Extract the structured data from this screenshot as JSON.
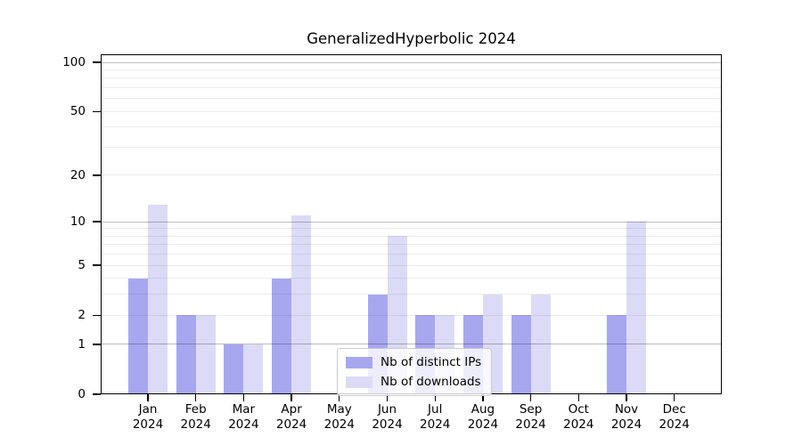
{
  "title": "GeneralizedHyperbolic 2024",
  "colors": {
    "distinct_ips": "#a7a7f0",
    "downloads": "#dbdbf8",
    "grid_major": "#00000042",
    "grid_minor": "#00000013",
    "axis": "#000000",
    "legend_border": "#cbcbcb"
  },
  "legend": {
    "items": [
      {
        "label": "Nb of distinct IPs",
        "color_key": "distinct_ips"
      },
      {
        "label": "Nb of downloads",
        "color_key": "downloads"
      }
    ]
  },
  "y_axis": {
    "scale": "log1p",
    "tick_values": [
      100,
      50,
      20,
      10,
      5,
      2,
      1,
      0
    ],
    "tick_labels": [
      "100",
      "50",
      "20",
      "10",
      "5",
      "2",
      "1",
      "0"
    ],
    "grid_major_values": [
      1,
      10,
      100
    ]
  },
  "x_axis": {
    "year_line": "2024",
    "month_labels": [
      "Jan",
      "Feb",
      "Mar",
      "Apr",
      "May",
      "Jun",
      "Jul",
      "Aug",
      "Sep",
      "Oct",
      "Nov",
      "Dec"
    ]
  },
  "chart_data": {
    "type": "bar",
    "title": "GeneralizedHyperbolic 2024",
    "categories": [
      "Jan 2024",
      "Feb 2024",
      "Mar 2024",
      "Apr 2024",
      "May 2024",
      "Jun 2024",
      "Jul 2024",
      "Aug 2024",
      "Sep 2024",
      "Oct 2024",
      "Nov 2024",
      "Dec 2024"
    ],
    "series": [
      {
        "name": "Nb of distinct IPs",
        "color_key": "distinct_ips",
        "values": [
          4,
          2,
          1,
          4,
          0,
          3,
          2,
          2,
          2,
          0,
          2,
          0
        ]
      },
      {
        "name": "Nb of downloads",
        "color_key": "downloads",
        "values": [
          13,
          2,
          1,
          11,
          0,
          8,
          2,
          3,
          3,
          0,
          10,
          0
        ]
      }
    ],
    "xlabel": "",
    "ylabel": "",
    "yscale": "log1p",
    "ylim": [
      0,
      112
    ],
    "ytick_values": [
      0,
      1,
      2,
      5,
      10,
      20,
      50,
      100
    ],
    "grid": "on",
    "legend_position": "lower-center-inside"
  }
}
